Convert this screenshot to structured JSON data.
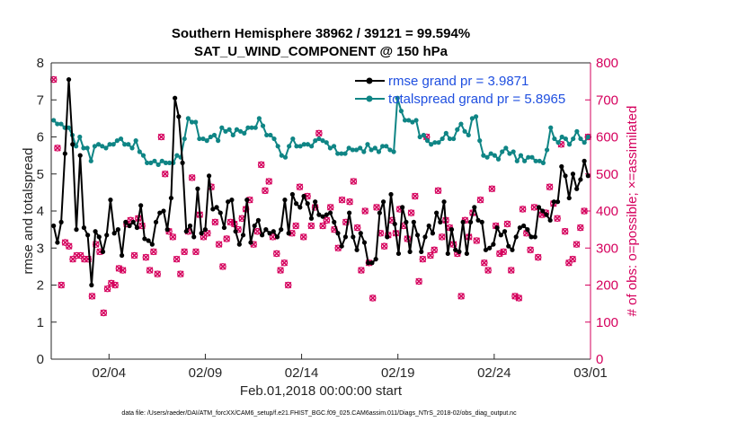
{
  "chart_data": {
    "type": "line",
    "title": "Southern Hemisphere 38962 / 39121 = 99.594%",
    "subtitle": "SAT_U_WIND_COMPONENT @ 150 hPa",
    "xlabel": "Feb.01,2018 00:00:00 start",
    "ylabel": "rmse and totalspread",
    "ylabel_right": "# of obs: o=possible; ×=assimilated",
    "footer": "data file: /Users/raeder/DAI/ATM_forcXX/CAM6_setup/f.e21.FHIST_BGC.f09_025.CAM6assim.011/Diags_NTrS_2018-02/obs_diag_output.nc",
    "xlim": [
      0.5,
      28.5
    ],
    "ylim": [
      0,
      8
    ],
    "ylim_right": [
      0,
      800
    ],
    "grid": false,
    "legend_position": "top-right",
    "x_ticks": [
      3.5,
      8.5,
      13.5,
      18.5,
      23.5,
      28.5
    ],
    "x_tick_labels": [
      "02/04",
      "02/09",
      "02/14",
      "02/19",
      "02/24",
      "03/01"
    ],
    "y_ticks": [
      0,
      1,
      2,
      3,
      4,
      5,
      6,
      7,
      8
    ],
    "y_ticks_right": [
      0,
      100,
      200,
      300,
      400,
      500,
      600,
      700,
      800
    ],
    "colors": {
      "rmse": "#000000",
      "totalspread": "#0f8585",
      "obs": "#d5005d",
      "legend_text": "#1f4fe0"
    },
    "series": [
      {
        "name": "rmse grand pr = 3.9871",
        "axis": "left",
        "values": [
          3.6,
          3.15,
          3.7,
          5.55,
          7.55,
          5.8,
          3.5,
          5.5,
          3.55,
          3.35,
          2.0,
          3.45,
          3.3,
          2.9,
          3.35,
          4.3,
          3.4,
          3.5,
          2.8,
          3.7,
          3.6,
          3.7,
          3.55,
          4.15,
          3.25,
          3.2,
          3.1,
          3.7,
          3.95,
          4.0,
          3.5,
          4.35,
          7.05,
          6.55,
          5.3,
          3.45,
          3.6,
          3.3,
          4.6,
          3.4,
          3.5,
          4.95,
          4.05,
          4.1,
          3.95,
          3.55,
          4.25,
          4.3,
          3.45,
          3.1,
          3.35,
          4.3,
          3.15,
          3.6,
          3.75,
          3.35,
          3.5,
          3.4,
          3.45,
          3.3,
          3.5,
          4.3,
          3.4,
          4.45,
          4.2,
          4.1,
          4.4,
          4.2,
          3.8,
          4.25,
          3.9,
          3.85,
          3.9,
          3.95,
          3.7,
          3.4,
          3.05,
          3.3,
          3.95,
          3.3,
          2.95,
          3.4,
          3.15,
          2.6,
          2.6,
          2.7,
          3.95,
          4.25,
          3.3,
          4.45,
          3.65,
          2.85,
          4.1,
          3.7,
          2.9,
          3.7,
          3.35,
          2.9,
          3.3,
          3.6,
          3.4,
          3.95,
          3.7,
          4.25,
          2.85,
          3.5,
          2.95,
          2.9,
          3.7,
          2.85,
          3.7,
          4.1,
          3.75,
          3.7,
          2.95,
          3.0,
          3.1,
          3.55,
          3.35,
          3.45,
          3.05,
          2.95,
          3.3,
          3.55,
          3.6,
          3.5,
          3.3,
          3.3,
          4.1,
          4.0,
          3.9,
          3.75,
          4.25,
          4.25,
          5.2,
          4.95,
          4.35,
          5.0,
          4.6,
          4.85,
          5.35,
          4.95
        ]
      },
      {
        "name": "totalspread grand pr = 5.8965",
        "axis": "left",
        "values": [
          6.45,
          6.35,
          6.35,
          6.25,
          6.25,
          6.05,
          5.75,
          6.0,
          5.7,
          5.7,
          5.35,
          5.75,
          5.8,
          5.75,
          5.7,
          5.8,
          5.8,
          5.9,
          5.95,
          5.8,
          5.8,
          5.7,
          5.9,
          5.6,
          5.5,
          5.3,
          5.3,
          5.35,
          5.25,
          5.35,
          5.3,
          5.3,
          5.3,
          5.5,
          5.45,
          5.95,
          6.5,
          6.4,
          6.4,
          5.95,
          5.95,
          5.9,
          6.0,
          6.05,
          5.9,
          6.25,
          6.15,
          6.2,
          6.05,
          6.2,
          6.15,
          6.1,
          6.25,
          6.25,
          6.25,
          6.5,
          6.3,
          6.05,
          6.05,
          5.95,
          5.75,
          5.5,
          5.45,
          5.75,
          5.95,
          5.75,
          5.75,
          5.8,
          5.8,
          5.75,
          5.9,
          5.95,
          5.9,
          5.85,
          5.7,
          5.75,
          5.55,
          5.55,
          5.55,
          5.7,
          5.65,
          5.65,
          5.7,
          5.6,
          5.8,
          5.65,
          5.7,
          5.6,
          5.75,
          5.75,
          5.65,
          5.6,
          7.05,
          6.7,
          6.45,
          6.45,
          6.4,
          6.45,
          6.0,
          6.05,
          5.9,
          5.8,
          5.85,
          5.85,
          5.95,
          6.1,
          5.95,
          5.95,
          6.2,
          6.35,
          6.15,
          6.05,
          6.5,
          6.55,
          5.9,
          5.5,
          5.45,
          5.55,
          5.5,
          5.4,
          5.6,
          5.7,
          5.55,
          5.6,
          5.35,
          5.5,
          5.35,
          5.45,
          5.45,
          5.35,
          5.35,
          5.3,
          5.65,
          6.25,
          5.95,
          5.85,
          6.0,
          5.95,
          5.8,
          5.95,
          6.15,
          5.95,
          5.85,
          6.0
        ]
      },
      {
        "name": "assimilated",
        "axis": "right",
        "values": [
          755,
          570,
          200,
          315,
          305,
          270,
          280,
          280,
          270,
          270,
          170,
          310,
          290,
          125,
          190,
          205,
          200,
          245,
          240,
          365,
          375,
          280,
          380,
          360,
          275,
          240,
          290,
          230,
          600,
          500,
          345,
          330,
          270,
          230,
          290,
          345,
          490,
          290,
          390,
          330,
          340,
          465,
          370,
          310,
          250,
          325,
          370,
          365,
          350,
          380,
          405,
          430,
          310,
          345,
          525,
          455,
          480,
          330,
          285,
          240,
          260,
          200,
          340,
          360,
          465,
          330,
          440,
          360,
          410,
          610,
          360,
          375,
          410,
          350,
          300,
          430,
          370,
          425,
          480,
          355,
          240,
          400,
          260,
          165,
          410,
          340,
          305,
          335,
          375,
          340,
          405,
          360,
          325,
          395,
          440,
          210,
          270,
          600,
          280,
          295,
          455,
          330,
          375,
          355,
          310,
          285,
          170,
          375,
          330,
          395,
          320,
          430,
          260,
          240,
          460,
          360,
          285,
          290,
          365,
          240,
          170,
          165,
          405,
          340,
          295,
          410,
          275,
          390,
          395,
          465,
          420,
          380,
          580,
          345,
          260,
          270,
          310,
          355,
          400,
          600
        ]
      },
      {
        "name": "possible",
        "axis": "right",
        "values": [
          755,
          570,
          200,
          315,
          305,
          270,
          280,
          280,
          270,
          270,
          170,
          310,
          290,
          125,
          190,
          205,
          200,
          245,
          240,
          365,
          375,
          280,
          380,
          360,
          275,
          240,
          290,
          230,
          600,
          500,
          345,
          330,
          270,
          230,
          290,
          345,
          490,
          290,
          390,
          330,
          340,
          465,
          370,
          310,
          250,
          325,
          370,
          365,
          350,
          380,
          405,
          430,
          310,
          345,
          525,
          455,
          480,
          330,
          285,
          240,
          260,
          200,
          340,
          360,
          465,
          330,
          440,
          360,
          410,
          610,
          360,
          375,
          410,
          350,
          300,
          430,
          370,
          425,
          480,
          355,
          240,
          400,
          260,
          165,
          410,
          340,
          305,
          335,
          375,
          340,
          405,
          360,
          325,
          395,
          440,
          210,
          270,
          600,
          280,
          295,
          455,
          330,
          375,
          355,
          310,
          285,
          170,
          375,
          330,
          395,
          320,
          430,
          260,
          240,
          460,
          360,
          285,
          290,
          365,
          240,
          170,
          165,
          405,
          340,
          295,
          410,
          275,
          390,
          395,
          465,
          420,
          380,
          580,
          345,
          260,
          270,
          310,
          355,
          400,
          600
        ]
      }
    ]
  }
}
